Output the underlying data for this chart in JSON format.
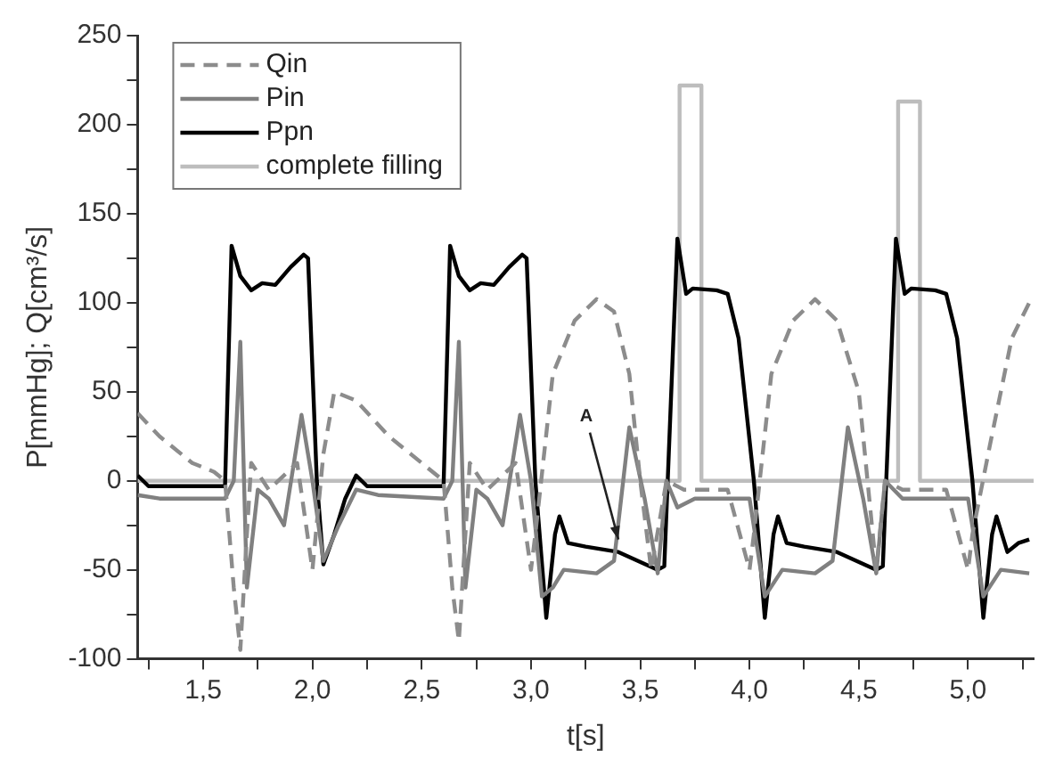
{
  "chart_data": {
    "type": "line",
    "xlabel": "t[s]",
    "ylabel": "P[mmHg]; Q[cm³/s]",
    "xlim": [
      1.2,
      5.3
    ],
    "xticks": [
      {
        "value": 1.25,
        "label": null
      },
      {
        "value": 1.5,
        "label": "1,5"
      },
      {
        "value": 1.75,
        "label": null
      },
      {
        "value": 2.0,
        "label": "2,0"
      },
      {
        "value": 2.25,
        "label": null
      },
      {
        "value": 2.5,
        "label": "2,5"
      },
      {
        "value": 2.75,
        "label": null
      },
      {
        "value": 3.0,
        "label": "3,0"
      },
      {
        "value": 3.25,
        "label": null
      },
      {
        "value": 3.5,
        "label": "3,5"
      },
      {
        "value": 3.75,
        "label": null
      },
      {
        "value": 4.0,
        "label": "4,0"
      },
      {
        "value": 4.25,
        "label": null
      },
      {
        "value": 4.5,
        "label": "4,5"
      },
      {
        "value": 4.75,
        "label": null
      },
      {
        "value": 5.0,
        "label": "5,0"
      },
      {
        "value": 5.25,
        "label": null
      }
    ],
    "ylim": [
      -100,
      250
    ],
    "yticks": [
      -100,
      {
        "value": -75,
        "label": null
      },
      -50,
      {
        "value": -25,
        "label": null
      },
      0,
      {
        "value": 25,
        "label": null
      },
      50,
      {
        "value": 75,
        "label": null
      },
      100,
      {
        "value": 125,
        "label": null
      },
      150,
      {
        "value": 175,
        "label": null
      },
      200,
      {
        "value": 225,
        "label": null
      },
      250
    ],
    "grid": false,
    "legend": "top left",
    "marker": "none",
    "annotations": [
      {
        "text": "A",
        "x": 3.4,
        "y": -33
      }
    ],
    "series": [
      {
        "name": "Qin",
        "color": "#8c8c8c",
        "line_style": "dashed",
        "x": [
          1.2,
          1.3,
          1.45,
          1.55,
          1.6,
          1.64,
          1.67,
          1.7,
          1.72,
          1.8,
          1.93,
          2.0,
          2.05,
          2.1,
          2.2,
          2.35,
          2.5,
          2.6,
          2.64,
          2.67,
          2.7,
          2.72,
          2.8,
          2.93,
          3.0,
          3.02,
          3.1,
          3.2,
          3.3,
          3.38,
          3.45,
          3.5,
          3.55,
          3.62,
          3.7,
          3.9,
          4.0,
          4.02,
          4.1,
          4.2,
          4.3,
          4.4,
          4.5,
          4.58,
          4.62,
          4.7,
          4.9,
          5.0,
          5.02,
          5.1,
          5.2,
          5.28
        ],
        "values": [
          38,
          25,
          10,
          5,
          0,
          -60,
          -95,
          -30,
          10,
          -5,
          10,
          -50,
          15,
          50,
          45,
          25,
          10,
          0,
          -60,
          -90,
          -30,
          10,
          -5,
          10,
          -50,
          -30,
          60,
          90,
          102,
          95,
          60,
          0,
          -50,
          0,
          -5,
          -5,
          -50,
          -30,
          60,
          90,
          102,
          90,
          50,
          -50,
          0,
          -5,
          -5,
          -50,
          -30,
          20,
          80,
          100
        ]
      },
      {
        "name": "Pin",
        "color": "#808080",
        "line_style": "solid",
        "x": [
          1.2,
          1.3,
          1.6,
          1.64,
          1.67,
          1.7,
          1.75,
          1.8,
          1.87,
          1.95,
          2.0,
          2.05,
          2.12,
          2.2,
          2.3,
          2.6,
          2.64,
          2.67,
          2.7,
          2.75,
          2.8,
          2.87,
          2.95,
          3.0,
          3.05,
          3.1,
          3.15,
          3.3,
          3.38,
          3.45,
          3.52,
          3.58,
          3.62,
          3.67,
          3.75,
          4.0,
          4.07,
          4.15,
          4.3,
          4.38,
          4.45,
          4.52,
          4.58,
          4.62,
          4.7,
          5.0,
          5.07,
          5.15,
          5.28
        ],
        "values": [
          -8,
          -10,
          -10,
          0,
          78,
          -60,
          -5,
          -10,
          -25,
          37,
          0,
          -45,
          -25,
          -5,
          -8,
          -10,
          0,
          78,
          -60,
          -5,
          -10,
          -25,
          37,
          0,
          -65,
          -60,
          -50,
          -52,
          -45,
          30,
          -10,
          -52,
          0,
          -15,
          -10,
          -10,
          -65,
          -50,
          -52,
          -45,
          30,
          -10,
          -52,
          0,
          -10,
          -10,
          -65,
          -50,
          -52
        ]
      },
      {
        "name": "Ppn",
        "color": "#000000",
        "line_style": "solid",
        "x": [
          1.2,
          1.25,
          1.6,
          1.63,
          1.67,
          1.72,
          1.77,
          1.83,
          1.9,
          1.96,
          1.98,
          2.02,
          2.05,
          2.1,
          2.15,
          2.2,
          2.25,
          2.6,
          2.63,
          2.67,
          2.72,
          2.77,
          2.83,
          2.9,
          2.96,
          2.98,
          3.02,
          3.07,
          3.11,
          3.13,
          3.17,
          3.25,
          3.4,
          3.58,
          3.61,
          3.67,
          3.71,
          3.74,
          3.85,
          3.9,
          3.95,
          4.02,
          4.07,
          4.11,
          4.13,
          4.17,
          4.25,
          4.4,
          4.58,
          4.61,
          4.67,
          4.71,
          4.74,
          4.85,
          4.9,
          4.95,
          5.02,
          5.07,
          5.11,
          5.13,
          5.18,
          5.23,
          5.28
        ],
        "values": [
          3,
          -3,
          -3,
          132,
          115,
          107,
          111,
          110,
          120,
          127,
          125,
          0,
          -47,
          -30,
          -10,
          3,
          -3,
          -3,
          132,
          115,
          107,
          111,
          110,
          120,
          127,
          125,
          0,
          -77,
          -30,
          -20,
          -35,
          -37,
          -40,
          -50,
          -48,
          136,
          105,
          108,
          107,
          105,
          80,
          0,
          -77,
          -30,
          -20,
          -35,
          -37,
          -40,
          -50,
          -48,
          136,
          105,
          108,
          107,
          105,
          80,
          0,
          -77,
          -30,
          -20,
          -40,
          -35,
          -33
        ]
      },
      {
        "name": "complete filling",
        "color": "#bdbdbd",
        "line_style": "solid",
        "x": [
          1.2,
          3.68,
          3.68,
          3.78,
          3.78,
          4.68,
          4.68,
          4.78,
          4.78,
          5.3
        ],
        "values": [
          0,
          0,
          222,
          222,
          0,
          0,
          213,
          213,
          0,
          0
        ]
      }
    ]
  }
}
